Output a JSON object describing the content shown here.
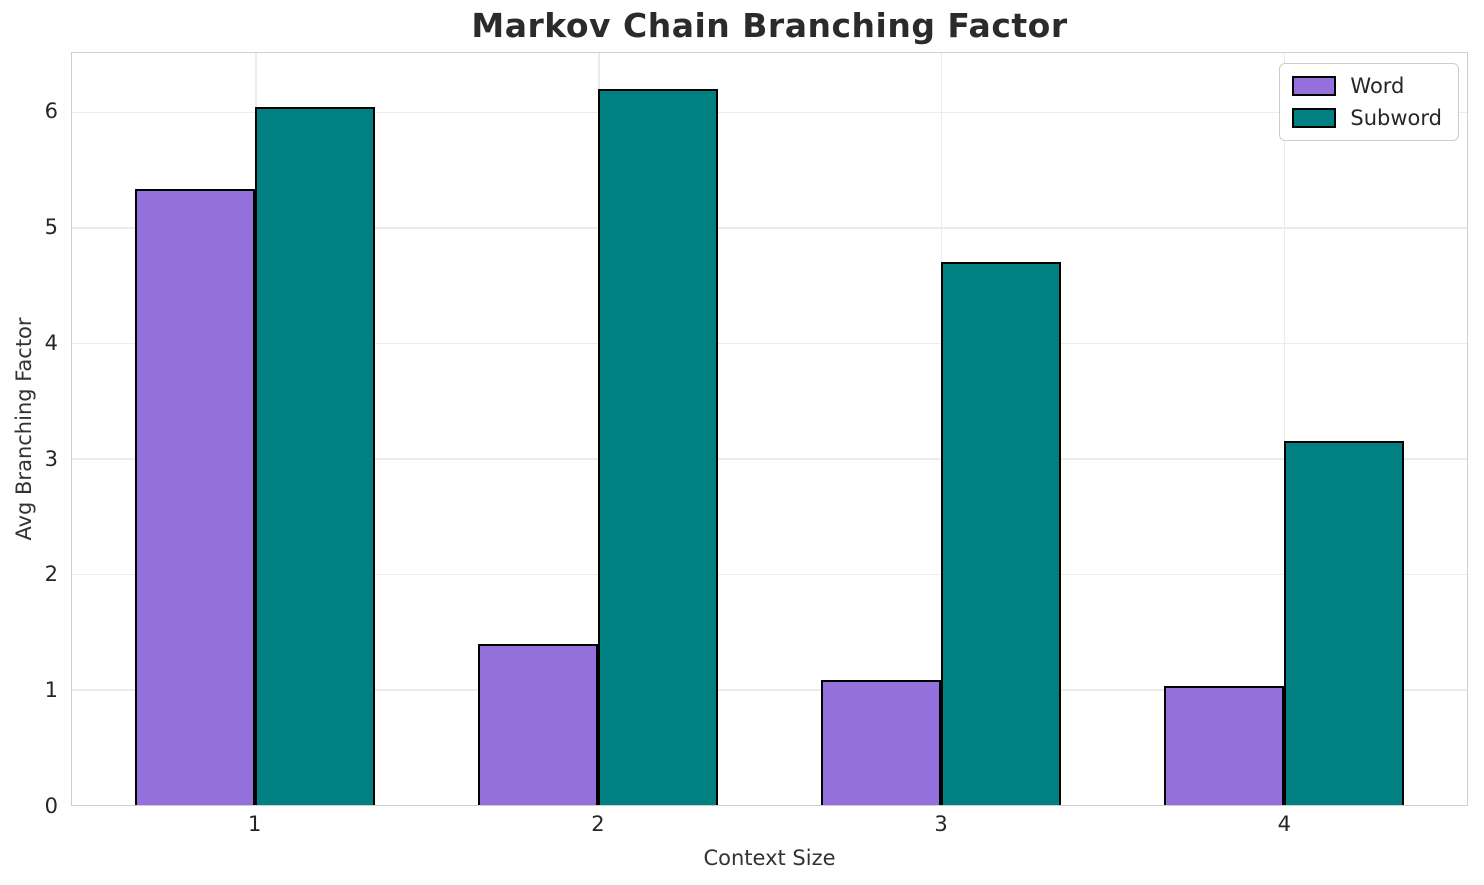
{
  "chart_data": {
    "type": "bar",
    "title": "Markov Chain Branching Factor",
    "xlabel": "Context Size",
    "ylabel": "Avg Branching Factor",
    "categories": [
      "1",
      "2",
      "3",
      "4"
    ],
    "series": [
      {
        "name": "Word",
        "color": "#9370DB",
        "values": [
          5.33,
          1.39,
          1.08,
          1.03
        ]
      },
      {
        "name": "Subword",
        "color": "#008080",
        "values": [
          6.04,
          6.2,
          4.7,
          3.15
        ]
      }
    ],
    "yticks": [
      0,
      1,
      2,
      3,
      4,
      5,
      6
    ],
    "ylim": [
      0,
      6.51
    ],
    "xlim": [
      0.465,
      4.535
    ],
    "bar_width": 0.35,
    "bar_edge_color": "#000000",
    "grid": true,
    "grid_color": "#ebebeb",
    "legend_position": "upper right",
    "legend_labels": [
      "Word",
      "Subword"
    ]
  }
}
